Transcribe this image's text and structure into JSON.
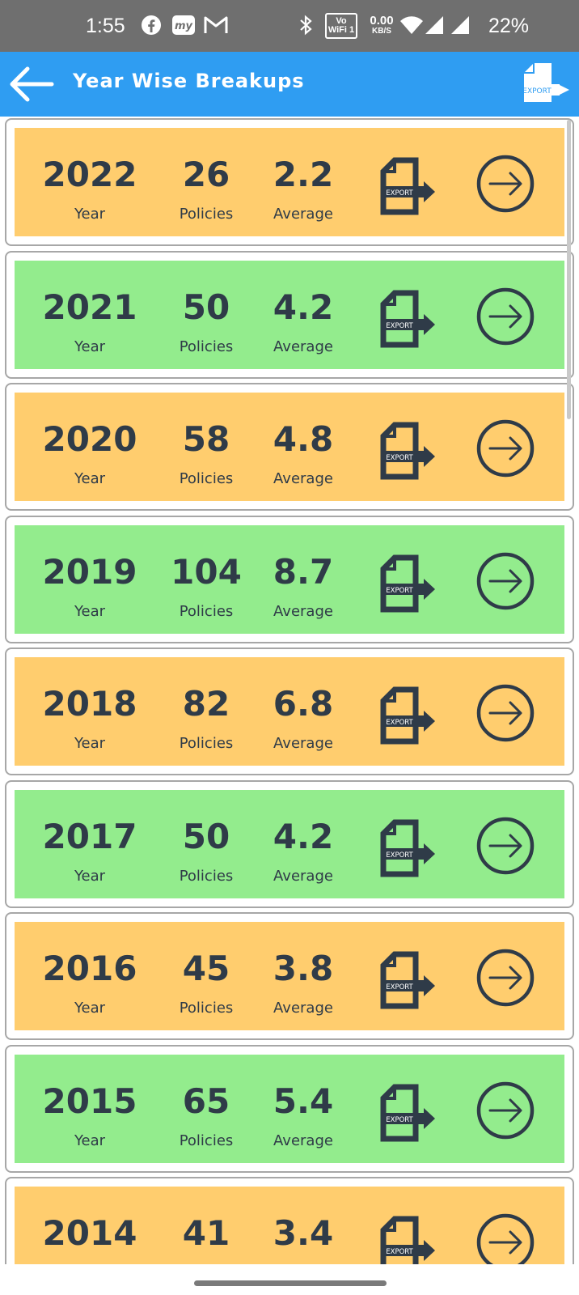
{
  "status_bar": {
    "time": "1:55",
    "wifi_label_top": "Vo",
    "wifi_label_bottom": "WiFi 1",
    "speed_value": "0.00",
    "speed_unit": "KB/S",
    "battery": "22%"
  },
  "app_bar": {
    "title": "Year Wise Breakups",
    "export_icon_text": "EXPORT"
  },
  "labels": {
    "year": "Year",
    "policies": "Policies",
    "average": "Average",
    "export": "EXPORT"
  },
  "colors": {
    "orange": "#ffcd6e",
    "green": "#93ec8d",
    "accent": "#2f9df2",
    "text": "#2f3b48"
  },
  "rows": [
    {
      "year": "2022",
      "policies": "26",
      "average": "2.2",
      "color": "#ffcd6e"
    },
    {
      "year": "2021",
      "policies": "50",
      "average": "4.2",
      "color": "#93ec8d"
    },
    {
      "year": "2020",
      "policies": "58",
      "average": "4.8",
      "color": "#ffcd6e"
    },
    {
      "year": "2019",
      "policies": "104",
      "average": "8.7",
      "color": "#93ec8d"
    },
    {
      "year": "2018",
      "policies": "82",
      "average": "6.8",
      "color": "#ffcd6e"
    },
    {
      "year": "2017",
      "policies": "50",
      "average": "4.2",
      "color": "#93ec8d"
    },
    {
      "year": "2016",
      "policies": "45",
      "average": "3.8",
      "color": "#ffcd6e"
    },
    {
      "year": "2015",
      "policies": "65",
      "average": "5.4",
      "color": "#93ec8d"
    },
    {
      "year": "2014",
      "policies": "41",
      "average": "3.4",
      "color": "#ffcd6e"
    }
  ]
}
